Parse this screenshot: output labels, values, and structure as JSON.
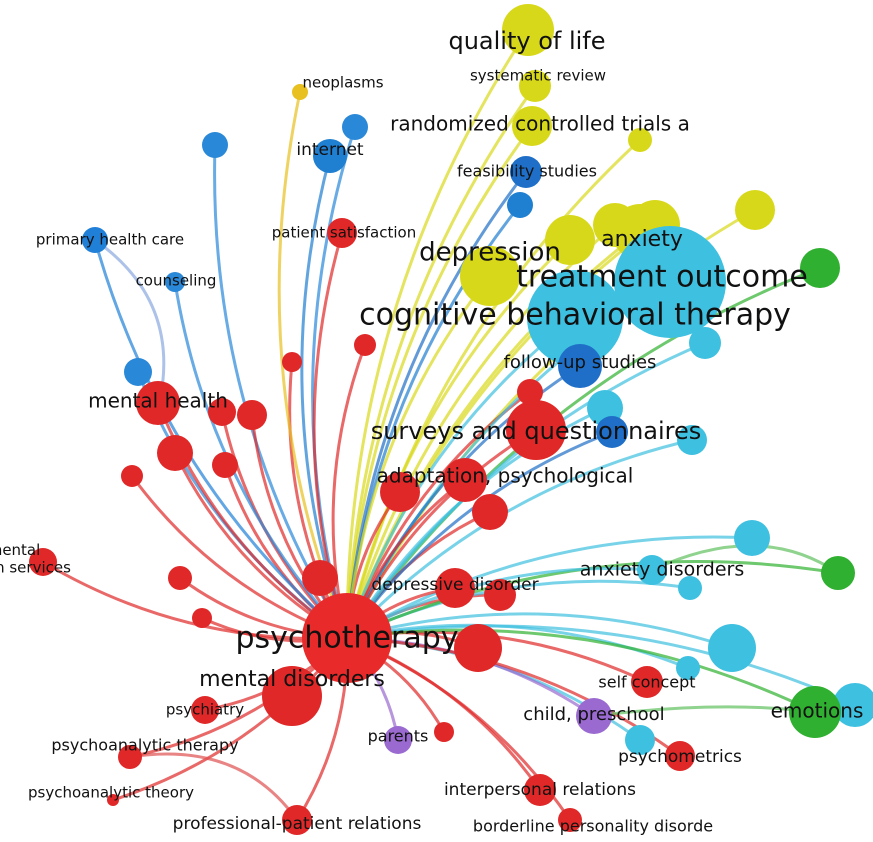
{
  "network": {
    "nodes": [
      {
        "label": "quality of life",
        "color": "#d8d81a"
      },
      {
        "label": "systematic review",
        "color": "#d8d81a"
      },
      {
        "label": "randomized controlled trials a",
        "color": "#d8d81a"
      },
      {
        "label": "neoplasms",
        "color": "#e8c020"
      },
      {
        "label": "internet",
        "color": "#1f7fd0"
      },
      {
        "label": "feasibility studies",
        "color": "#1f6fc8"
      },
      {
        "label": "primary health care",
        "color": "#2080d8"
      },
      {
        "label": "counseling",
        "color": "#2a88d8"
      },
      {
        "label": "patient satisfaction",
        "color": "#e02828"
      },
      {
        "label": "depression",
        "color": "#d8d81a"
      },
      {
        "label": "anxiety",
        "color": "#d8d81a"
      },
      {
        "label": "treatment outcome",
        "color": "#3ec0e0"
      },
      {
        "label": "cognitive behavioral therapy",
        "color": "#3ec0e0"
      },
      {
        "label": "follow-up studies",
        "color": "#1f6fc8"
      },
      {
        "label": "mental health",
        "color": "#e02828"
      },
      {
        "label": "surveys and questionnaires",
        "color": "#e02828"
      },
      {
        "label": "adaptation, psychological",
        "color": "#e02828"
      },
      {
        "label": [
          "mental",
          "health services"
        ],
        "color": "#e02828"
      },
      {
        "label": "depressive disorder",
        "color": "#e02828"
      },
      {
        "label": "anxiety disorders",
        "color": "#3ec0e0"
      },
      {
        "label": "psychotherapy",
        "color": "#e82a2a"
      },
      {
        "label": "mental disorders",
        "color": "#e02828"
      },
      {
        "label": "self concept",
        "color": "#e02828"
      },
      {
        "label": "child, preschool",
        "color": "#9a6ad0"
      },
      {
        "label": "emotions",
        "color": "#30b030"
      },
      {
        "label": "psychiatry",
        "color": "#e02828"
      },
      {
        "label": "parents",
        "color": "#9a6ad0"
      },
      {
        "label": "psychoanalytic therapy",
        "color": "#e02828"
      },
      {
        "label": "psychometrics",
        "color": "#e02828"
      },
      {
        "label": "psychoanalytic theory",
        "color": "#e02828"
      },
      {
        "label": "interpersonal relations",
        "color": "#e02828"
      },
      {
        "label": "professional-patient relations",
        "color": "#e02828"
      },
      {
        "label": "borderline personality disorde",
        "color": "#e02828"
      }
    ]
  }
}
